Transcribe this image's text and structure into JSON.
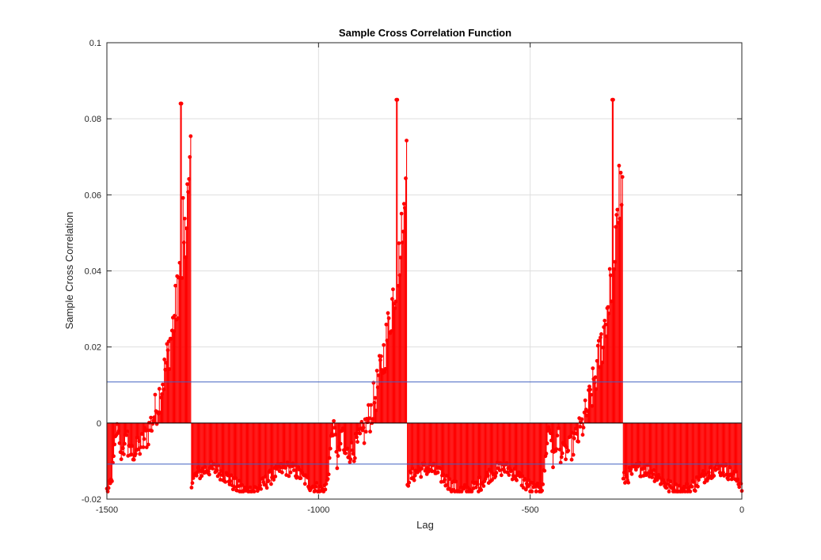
{
  "chart_data": {
    "type": "stem",
    "title": "Sample Cross Correlation Function",
    "xlabel": "Lag",
    "ylabel": "Sample Cross Correlation",
    "xlim": [
      -1500,
      0
    ],
    "ylim": [
      -0.02,
      0.1
    ],
    "x_ticks": [
      -1500,
      -1000,
      -500,
      0
    ],
    "x_tick_labels": [
      "-1500",
      "-1000",
      "-500",
      "0"
    ],
    "y_ticks": [
      -0.02,
      0,
      0.02,
      0.04,
      0.06,
      0.08,
      0.1
    ],
    "y_tick_labels": [
      "-0.02",
      "0",
      "0.02",
      "0.04",
      "0.06",
      "0.08",
      "0.1"
    ],
    "grid": true,
    "confidence_bounds": [
      0.0108,
      -0.0108
    ],
    "series": [
      {
        "style": "stem with filled circle markers",
        "color": "#ff0000",
        "description_of_shape": "Periodic sawtooth-like cross correlation with period of about 510 lags. Each cycle rises from near 0 to a sharp peak near 0.085, then drops to about -0.015 and stays negative until the next rise.",
        "peaks": [
          {
            "lag": -1325,
            "value": 0.084
          },
          {
            "lag": -815,
            "value": 0.085
          },
          {
            "lag": -305,
            "value": 0.085
          }
        ],
        "drop_lags": [
          -1300,
          -790,
          -280
        ],
        "negative_plateau_value": -0.015,
        "local_bumps": [
          {
            "lag": -1063,
            "value": 0.002
          },
          {
            "lag": -553,
            "value": 0.002
          },
          {
            "lag": -43,
            "value": 0.002
          }
        ]
      }
    ],
    "bound_color": "#4060c0",
    "zero_line_color": "#000000"
  }
}
